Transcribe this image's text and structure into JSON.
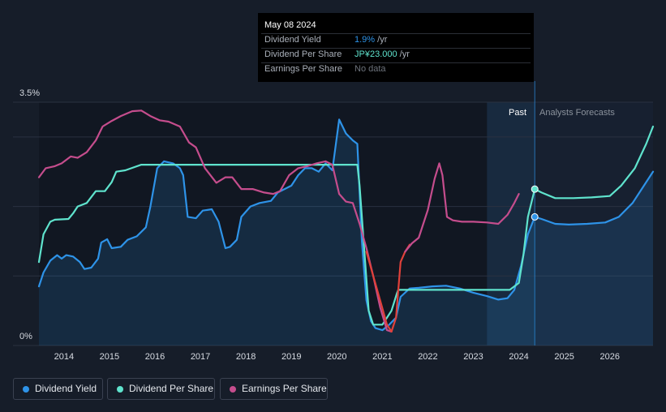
{
  "tooltip": {
    "date": "May 08 2024",
    "rows": [
      {
        "label": "Dividend Yield",
        "value": "1.9%",
        "suffix": " /yr"
      },
      {
        "label": "Dividend Per Share",
        "value": "JP¥23.000",
        "suffix": " /yr"
      },
      {
        "label": "Earnings Per Share",
        "value": "No data",
        "suffix": ""
      }
    ]
  },
  "chart_data": {
    "type": "line",
    "y_axis": {
      "top_label": "3.5%",
      "bottom_label": "0%",
      "range": [
        0,
        3.5
      ]
    },
    "x_axis": {
      "ticks": [
        "2014",
        "2015",
        "2016",
        "2017",
        "2018",
        "2019",
        "2020",
        "2021",
        "2022",
        "2023",
        "2024",
        "2025",
        "2026"
      ],
      "range": [
        2013.45,
        2026.95
      ]
    },
    "region_labels": {
      "past": "Past",
      "forecast": "Analysts Forecasts"
    },
    "past_region": [
      2023.3,
      2024.35
    ],
    "cursor_x": 2024.35,
    "grid": true,
    "colors": {
      "dividend_yield": "#2e93e8",
      "dividend_per_share": "#5fe3cd",
      "earnings_per_share": "#c54d8d",
      "earnings_negative": "#e0413a"
    },
    "series": [
      {
        "name": "Dividend Yield",
        "key": "dividend_yield",
        "fill": true,
        "points": [
          [
            2013.45,
            0.85
          ],
          [
            2013.55,
            1.05
          ],
          [
            2013.7,
            1.22
          ],
          [
            2013.85,
            1.3
          ],
          [
            2013.95,
            1.25
          ],
          [
            2014.05,
            1.3
          ],
          [
            2014.2,
            1.28
          ],
          [
            2014.35,
            1.2
          ],
          [
            2014.45,
            1.1
          ],
          [
            2014.6,
            1.12
          ],
          [
            2014.75,
            1.25
          ],
          [
            2014.82,
            1.48
          ],
          [
            2014.95,
            1.53
          ],
          [
            2015.05,
            1.4
          ],
          [
            2015.25,
            1.42
          ],
          [
            2015.4,
            1.52
          ],
          [
            2015.6,
            1.57
          ],
          [
            2015.8,
            1.7
          ],
          [
            2015.9,
            2.0
          ],
          [
            2016.05,
            2.55
          ],
          [
            2016.2,
            2.65
          ],
          [
            2016.4,
            2.62
          ],
          [
            2016.55,
            2.55
          ],
          [
            2016.62,
            2.45
          ],
          [
            2016.72,
            1.85
          ],
          [
            2016.9,
            1.83
          ],
          [
            2017.05,
            1.94
          ],
          [
            2017.25,
            1.96
          ],
          [
            2017.4,
            1.78
          ],
          [
            2017.55,
            1.4
          ],
          [
            2017.65,
            1.42
          ],
          [
            2017.8,
            1.52
          ],
          [
            2017.9,
            1.85
          ],
          [
            2018.1,
            2.0
          ],
          [
            2018.3,
            2.05
          ],
          [
            2018.55,
            2.08
          ],
          [
            2018.7,
            2.2
          ],
          [
            2018.85,
            2.25
          ],
          [
            2019.0,
            2.3
          ],
          [
            2019.15,
            2.45
          ],
          [
            2019.3,
            2.55
          ],
          [
            2019.45,
            2.55
          ],
          [
            2019.6,
            2.5
          ],
          [
            2019.75,
            2.62
          ],
          [
            2019.9,
            2.52
          ],
          [
            2020.05,
            3.25
          ],
          [
            2020.2,
            3.05
          ],
          [
            2020.35,
            2.95
          ],
          [
            2020.45,
            2.9
          ],
          [
            2020.55,
            1.5
          ],
          [
            2020.65,
            0.65
          ],
          [
            2020.75,
            0.35
          ],
          [
            2020.85,
            0.25
          ],
          [
            2021.0,
            0.22
          ],
          [
            2021.15,
            0.3
          ],
          [
            2021.3,
            0.4
          ],
          [
            2021.4,
            0.7
          ],
          [
            2021.6,
            0.82
          ],
          [
            2021.8,
            0.83
          ],
          [
            2022.1,
            0.85
          ],
          [
            2022.4,
            0.86
          ],
          [
            2022.7,
            0.82
          ],
          [
            2023.0,
            0.76
          ],
          [
            2023.3,
            0.71
          ],
          [
            2023.55,
            0.66
          ],
          [
            2023.75,
            0.68
          ],
          [
            2023.9,
            0.8
          ],
          [
            2024.05,
            1.15
          ],
          [
            2024.2,
            1.6
          ],
          [
            2024.35,
            1.85
          ],
          [
            2024.5,
            1.82
          ],
          [
            2024.8,
            1.75
          ],
          [
            2025.1,
            1.74
          ],
          [
            2025.5,
            1.75
          ],
          [
            2025.9,
            1.77
          ],
          [
            2026.2,
            1.85
          ],
          [
            2026.5,
            2.05
          ],
          [
            2026.75,
            2.3
          ],
          [
            2026.95,
            2.5
          ]
        ]
      },
      {
        "name": "Dividend Per Share",
        "key": "dividend_per_share",
        "fill": false,
        "points": [
          [
            2013.45,
            1.2
          ],
          [
            2013.55,
            1.6
          ],
          [
            2013.7,
            1.78
          ],
          [
            2013.8,
            1.81
          ],
          [
            2014.1,
            1.82
          ],
          [
            2014.2,
            1.9
          ],
          [
            2014.3,
            2.0
          ],
          [
            2014.5,
            2.05
          ],
          [
            2014.7,
            2.22
          ],
          [
            2014.9,
            2.22
          ],
          [
            2015.05,
            2.35
          ],
          [
            2015.15,
            2.5
          ],
          [
            2015.35,
            2.52
          ],
          [
            2015.7,
            2.6
          ],
          [
            2016.2,
            2.6
          ],
          [
            2017.0,
            2.6
          ],
          [
            2018.0,
            2.6
          ],
          [
            2019.0,
            2.6
          ],
          [
            2020.0,
            2.6
          ],
          [
            2020.45,
            2.6
          ],
          [
            2020.5,
            2.3
          ],
          [
            2020.6,
            1.4
          ],
          [
            2020.7,
            0.5
          ],
          [
            2020.8,
            0.3
          ],
          [
            2021.0,
            0.3
          ],
          [
            2021.2,
            0.5
          ],
          [
            2021.32,
            0.75
          ],
          [
            2021.35,
            0.8
          ],
          [
            2022.0,
            0.8
          ],
          [
            2023.0,
            0.8
          ],
          [
            2023.8,
            0.8
          ],
          [
            2024.0,
            0.9
          ],
          [
            2024.1,
            1.3
          ],
          [
            2024.2,
            1.85
          ],
          [
            2024.35,
            2.25
          ],
          [
            2024.5,
            2.2
          ],
          [
            2024.8,
            2.12
          ],
          [
            2025.2,
            2.12
          ],
          [
            2025.6,
            2.13
          ],
          [
            2026.0,
            2.15
          ],
          [
            2026.25,
            2.3
          ],
          [
            2026.55,
            2.55
          ],
          [
            2026.8,
            2.9
          ],
          [
            2026.95,
            3.15
          ]
        ]
      },
      {
        "name": "Earnings Per Share",
        "key": "earnings_per_share",
        "fill": false,
        "points": [
          [
            2013.45,
            2.42
          ],
          [
            2013.6,
            2.55
          ],
          [
            2013.8,
            2.58
          ],
          [
            2013.95,
            2.62
          ],
          [
            2014.15,
            2.72
          ],
          [
            2014.3,
            2.7
          ],
          [
            2014.5,
            2.78
          ],
          [
            2014.7,
            2.95
          ],
          [
            2014.85,
            3.15
          ],
          [
            2015.05,
            3.23
          ],
          [
            2015.25,
            3.3
          ],
          [
            2015.5,
            3.37
          ],
          [
            2015.7,
            3.38
          ],
          [
            2015.9,
            3.3
          ],
          [
            2016.1,
            3.24
          ],
          [
            2016.3,
            3.22
          ],
          [
            2016.55,
            3.15
          ],
          [
            2016.75,
            2.92
          ],
          [
            2016.9,
            2.85
          ],
          [
            2017.1,
            2.55
          ],
          [
            2017.35,
            2.34
          ],
          [
            2017.55,
            2.42
          ],
          [
            2017.7,
            2.42
          ],
          [
            2017.9,
            2.25
          ],
          [
            2018.15,
            2.25
          ],
          [
            2018.4,
            2.2
          ],
          [
            2018.6,
            2.18
          ],
          [
            2018.75,
            2.22
          ],
          [
            2018.95,
            2.45
          ],
          [
            2019.15,
            2.55
          ],
          [
            2019.35,
            2.58
          ],
          [
            2019.55,
            2.62
          ],
          [
            2019.75,
            2.65
          ],
          [
            2019.9,
            2.6
          ],
          [
            2020.05,
            2.18
          ],
          [
            2020.2,
            2.07
          ],
          [
            2020.35,
            2.05
          ],
          [
            2020.5,
            1.75
          ],
          [
            2020.65,
            1.4
          ],
          [
            2020.8,
            1.0
          ],
          [
            2020.95,
            0.55
          ],
          [
            2021.1,
            0.22
          ],
          [
            2021.2,
            0.2
          ]
        ]
      },
      {
        "name": "Earnings Per Share (negative growth)",
        "key": "earnings_negative",
        "fill": false,
        "points": [
          [
            2020.65,
            1.35
          ],
          [
            2020.8,
            1.0
          ],
          [
            2020.95,
            0.65
          ],
          [
            2021.1,
            0.3
          ],
          [
            2021.2,
            0.2
          ],
          [
            2021.3,
            0.4
          ],
          [
            2021.4,
            1.2
          ],
          [
            2021.5,
            1.35
          ],
          [
            2021.6,
            1.45
          ]
        ]
      },
      {
        "name": "Earnings Per Share (recovery)",
        "key": "earnings_per_share",
        "fill": false,
        "points": [
          [
            2021.5,
            1.35
          ],
          [
            2021.65,
            1.47
          ],
          [
            2021.8,
            1.55
          ],
          [
            2022.0,
            1.95
          ],
          [
            2022.15,
            2.4
          ],
          [
            2022.25,
            2.62
          ],
          [
            2022.32,
            2.45
          ],
          [
            2022.42,
            1.85
          ],
          [
            2022.55,
            1.8
          ],
          [
            2022.75,
            1.78
          ],
          [
            2023.0,
            1.78
          ],
          [
            2023.3,
            1.77
          ],
          [
            2023.55,
            1.75
          ],
          [
            2023.75,
            1.88
          ],
          [
            2023.9,
            2.05
          ],
          [
            2024.0,
            2.18
          ]
        ]
      }
    ],
    "markers": [
      {
        "series": "Dividend Per Share",
        "x": 2024.35,
        "y": 2.25
      },
      {
        "series": "Dividend Yield",
        "x": 2024.35,
        "y": 1.85
      }
    ],
    "legend": [
      "Dividend Yield",
      "Dividend Per Share",
      "Earnings Per Share"
    ]
  }
}
